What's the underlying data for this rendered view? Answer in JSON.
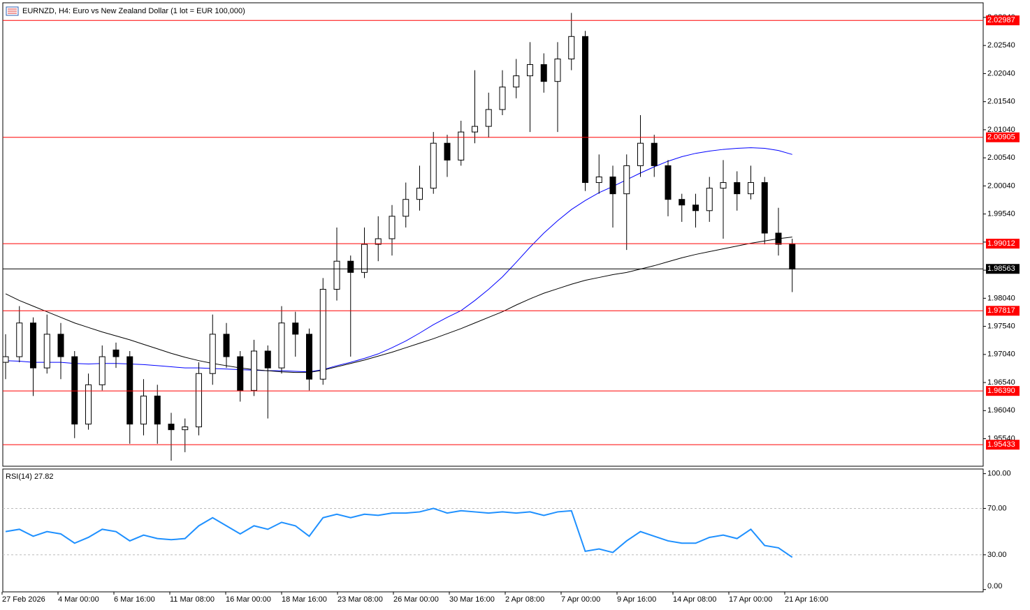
{
  "header": "EURNZD, H4:  Euro vs New Zealand Dollar (1 lot = EUR 100,000)",
  "time_labels": [
    "27 Feb 2026",
    "4 Mar 00:00",
    "6 Mar 16:00",
    "11 Mar 08:00",
    "16 Mar 00:00",
    "18 Mar 16:00",
    "23 Mar 08:00",
    "26 Mar 00:00",
    "30 Mar 16:00",
    "2 Apr 08:00",
    "7 Apr 00:00",
    "9 Apr 16:00",
    "14 Apr 08:00",
    "17 Apr 00:00",
    "21 Apr 16:00"
  ],
  "chart_data": [
    {
      "type": "candlestick",
      "ylim": [
        1.9505,
        2.033
      ],
      "yticks": [
        {
          "value": 1.9554,
          "label": "1.95540"
        },
        {
          "value": 1.9604,
          "label": "1.96040"
        },
        {
          "value": 1.9654,
          "label": "1.96540"
        },
        {
          "value": 1.9704,
          "label": "1.97040"
        },
        {
          "value": 1.9754,
          "label": "1.97540"
        },
        {
          "value": 1.9804,
          "label": "1.98040"
        },
        {
          "value": 1.9854,
          "label": "1.98540"
        },
        {
          "value": 1.9904,
          "label": "1.99040"
        },
        {
          "value": 1.9954,
          "label": "1.99540"
        },
        {
          "value": 2.0004,
          "label": "2.00040"
        },
        {
          "value": 2.0054,
          "label": "2.00540"
        },
        {
          "value": 2.0104,
          "label": "2.01040"
        },
        {
          "value": 2.0154,
          "label": "2.01540"
        },
        {
          "value": 2.0204,
          "label": "2.02040"
        },
        {
          "value": 2.0254,
          "label": "2.02540"
        },
        {
          "value": 2.0304,
          "label": "2.03040"
        }
      ],
      "levels": [
        2.02987,
        2.00905,
        1.99012,
        1.97817,
        {
          "value": 1.9639,
          "label": "1.96390"
        },
        1.95433
      ],
      "level_color": "#ff0000",
      "current_price": 1.98563,
      "open": [
        1.969,
        1.97,
        1.976,
        1.968,
        1.974,
        1.97,
        1.958,
        1.965,
        1.9712,
        1.97,
        1.958,
        1.963,
        1.958,
        1.957,
        1.9575,
        1.967,
        1.974,
        1.97,
        1.964,
        1.971,
        1.968,
        1.976,
        1.974,
        1.966,
        1.982,
        1.987,
        1.985,
        1.99,
        1.991,
        1.995,
        1.998,
        2.0,
        2.008,
        2.005,
        2.01,
        2.011,
        2.014,
        2.018,
        2.02,
        2.022,
        2.019,
        2.023,
        2.027,
        2.001,
        2.002,
        1.999,
        2.004,
        2.008,
        2.004,
        1.998,
        1.997,
        1.996,
        2.0,
        2.001,
        1.999,
        2.001,
        1.992,
        1.99
      ],
      "high": [
        1.974,
        1.979,
        1.977,
        1.9775,
        1.976,
        1.971,
        1.967,
        1.972,
        1.9725,
        1.971,
        1.966,
        1.965,
        1.96,
        1.959,
        1.969,
        1.9775,
        1.976,
        1.971,
        1.973,
        1.972,
        1.979,
        1.978,
        1.975,
        1.984,
        1.993,
        1.988,
        1.993,
        1.995,
        1.997,
        2.001,
        2.004,
        2.01,
        2.0095,
        2.012,
        2.021,
        2.017,
        2.021,
        2.023,
        2.026,
        2.024,
        2.026,
        2.0312,
        2.028,
        2.006,
        2.004,
        2.006,
        2.013,
        2.0095,
        2.005,
        1.999,
        1.999,
        2.002,
        2.005,
        2.003,
        2.004,
        2.002,
        1.9965,
        1.991
      ],
      "low": [
        1.966,
        1.969,
        1.963,
        1.967,
        1.966,
        1.9555,
        1.957,
        1.964,
        1.968,
        1.9545,
        1.956,
        1.9545,
        1.9515,
        1.953,
        1.956,
        1.965,
        1.968,
        1.962,
        1.963,
        1.959,
        1.967,
        1.97,
        1.964,
        1.965,
        1.98,
        1.97,
        1.984,
        1.987,
        1.988,
        1.993,
        1.996,
        1.999,
        2.002,
        2.004,
        2.008,
        2.009,
        2.013,
        2.016,
        2.01,
        2.017,
        2.01,
        2.021,
        1.9995,
        1.999,
        1.993,
        1.989,
        2.002,
        2.002,
        1.995,
        1.994,
        1.993,
        1.994,
        1.991,
        1.996,
        1.998,
        1.99,
        1.988,
        1.9815
      ],
      "close": [
        1.97,
        1.976,
        1.968,
        1.974,
        1.97,
        1.958,
        1.965,
        1.97,
        1.97,
        1.958,
        1.963,
        1.958,
        1.957,
        1.9575,
        1.967,
        1.974,
        1.97,
        1.964,
        1.971,
        1.968,
        1.976,
        1.974,
        1.966,
        1.982,
        1.987,
        1.985,
        1.99,
        1.991,
        1.995,
        1.998,
        2.0,
        2.008,
        2.005,
        2.01,
        2.011,
        2.014,
        2.018,
        2.02,
        2.022,
        2.019,
        2.023,
        2.027,
        2.001,
        2.002,
        1.999,
        2.004,
        2.008,
        2.004,
        1.998,
        1.997,
        1.996,
        2.0,
        2.001,
        1.999,
        2.001,
        1.992,
        1.99,
        1.9856
      ],
      "moving_averages": [
        {
          "color": "#0000ff",
          "values": [
            1.9693,
            1.9692,
            1.969,
            1.969,
            1.969,
            1.9688,
            1.9687,
            1.9688,
            1.9688,
            1.9687,
            1.9686,
            1.9684,
            1.9682,
            1.968,
            1.968,
            1.9679,
            1.9678,
            1.9677,
            1.9676,
            1.9675,
            1.9675,
            1.9674,
            1.9673,
            1.9677,
            1.9684,
            1.969,
            1.9697,
            1.9705,
            1.9716,
            1.9728,
            1.9742,
            1.9757,
            1.977,
            1.9782,
            1.98,
            1.982,
            1.9842,
            1.9868,
            1.9895,
            1.992,
            1.9942,
            1.9962,
            1.9978,
            1.9992,
            2.0003,
            2.0015,
            2.0027,
            2.0038,
            2.0048,
            2.0056,
            2.0062,
            2.0066,
            2.0069,
            2.0071,
            2.0072,
            2.0071,
            2.0067,
            2.006
          ]
        },
        {
          "color": "#000000",
          "values": [
            1.9812,
            1.98,
            1.979,
            1.978,
            1.977,
            1.976,
            1.9752,
            1.9744,
            1.9737,
            1.973,
            1.9722,
            1.9714,
            1.9706,
            1.9699,
            1.9693,
            1.9688,
            1.9684,
            1.968,
            1.9677,
            1.9675,
            1.9673,
            1.9672,
            1.9672,
            1.9676,
            1.9682,
            1.9688,
            1.9694,
            1.9701,
            1.9708,
            1.9716,
            1.9724,
            1.9732,
            1.9741,
            1.975,
            1.976,
            1.977,
            1.978,
            1.9792,
            1.9803,
            1.9813,
            1.9821,
            1.9829,
            1.9836,
            1.9841,
            1.9846,
            1.985,
            1.9856,
            1.9862,
            1.9869,
            1.9876,
            1.9882,
            1.9887,
            1.9892,
            1.9897,
            1.9902,
            1.9906,
            1.991,
            1.9913
          ]
        }
      ]
    },
    {
      "type": "line",
      "title": "RSI(14) 27.82",
      "color": "#1e90ff",
      "ylim": [
        -2,
        104
      ],
      "yticks": [
        {
          "value": 0,
          "label": "0.00"
        },
        {
          "value": 30,
          "label": "30.00"
        },
        {
          "value": 70,
          "label": "70.00"
        },
        {
          "value": 100,
          "label": "100.00"
        }
      ],
      "levels": [
        70,
        30
      ],
      "values": [
        50,
        52,
        46,
        50,
        48,
        40,
        45,
        52,
        50,
        42,
        47,
        44,
        43,
        44,
        55,
        62,
        55,
        48,
        55,
        52,
        58,
        55,
        46,
        62,
        65,
        62,
        65,
        64,
        66,
        66,
        67,
        70,
        66,
        68,
        67,
        66,
        67,
        66,
        67,
        64,
        67,
        68,
        33,
        35,
        32,
        42,
        50,
        46,
        42,
        40,
        40,
        45,
        47,
        44,
        52,
        38,
        36,
        27.82
      ]
    }
  ]
}
